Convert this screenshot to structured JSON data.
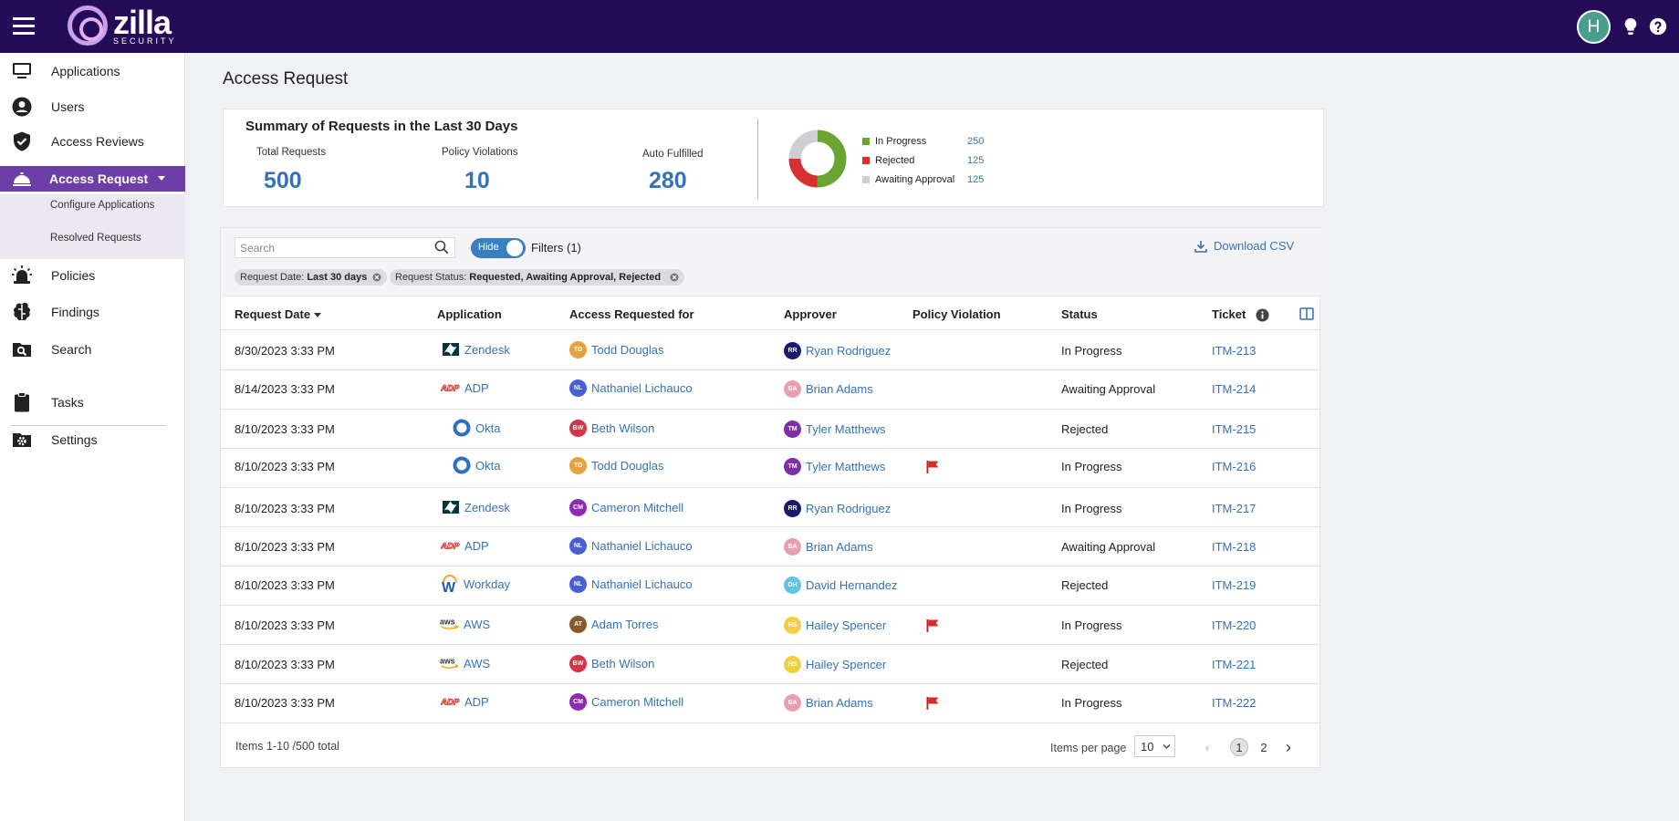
{
  "brand": {
    "word": "zilla",
    "sub": "SECURITY",
    "accent": "#6d3fa6",
    "topbar": "#250c59"
  },
  "user": {
    "initial": "H"
  },
  "sidebar": {
    "items": [
      {
        "label": "Applications"
      },
      {
        "label": "Users"
      },
      {
        "label": "Access Reviews"
      },
      {
        "label": "Access Request"
      },
      {
        "label": "Policies"
      },
      {
        "label": "Findings"
      },
      {
        "label": "Search"
      },
      {
        "label": "Tasks"
      },
      {
        "label": "Settings"
      }
    ],
    "subitems": [
      {
        "label": "Configure Applications"
      },
      {
        "label": "Resolved Requests"
      }
    ]
  },
  "page": {
    "title": "Access Request"
  },
  "summary": {
    "title": "Summary of Requests in the Last 30 Days",
    "stats": [
      {
        "label": "Total Requests",
        "value": "500"
      },
      {
        "label": "Policy Violations",
        "value": "10"
      },
      {
        "label": "Auto Fulfilled",
        "value": "280"
      }
    ],
    "legend": [
      {
        "label": "In Progress",
        "value": "250",
        "color": "#6aa534"
      },
      {
        "label": "Rejected",
        "value": "125",
        "color": "#d63031"
      },
      {
        "label": "Awaiting Approval",
        "value": "125",
        "color": "#cfcfd3"
      }
    ]
  },
  "toolbar": {
    "search_placeholder": "Search",
    "toggle_label": "Hide",
    "filters_label": "Filters (1)",
    "download_label": "Download CSV",
    "chips": [
      {
        "key": "Request Date:",
        "value": "Last 30 days"
      },
      {
        "key": "Request Status:",
        "value": "Requested, Awaiting Approval, Rejected"
      }
    ]
  },
  "table": {
    "columns": [
      "Request Date",
      "Application",
      "Access Requested for",
      "Approver",
      "Policy Violation",
      "Status",
      "Ticket"
    ],
    "rows": [
      {
        "date": "8/30/2023 3:33 PM",
        "app": "Zendesk",
        "req": "Todd Douglas",
        "req_initials": "TD",
        "req_color": "#e6a23c",
        "appr": "Ryan Rodriguez",
        "appr_initials": "RR",
        "appr_color": "#1a1a6e",
        "violation": false,
        "status": "In Progress",
        "ticket": "ITM-213"
      },
      {
        "date": "8/14/2023 3:33 PM",
        "app": "ADP",
        "req": "Nathaniel Lichauco",
        "req_initials": "NL",
        "req_color": "#4a5fd6",
        "appr": "Brian Adams",
        "appr_initials": "BA",
        "appr_color": "#e8a0b0",
        "violation": false,
        "status": "Awaiting Approval",
        "ticket": "ITM-214"
      },
      {
        "date": "8/10/2023 3:33 PM",
        "app": "Okta",
        "req": "Beth Wilson",
        "req_initials": "BW",
        "req_color": "#d63349",
        "appr": "Tyler Matthews",
        "appr_initials": "TM",
        "appr_color": "#7d2ea8",
        "violation": false,
        "status": "Rejected",
        "ticket": "ITM-215"
      },
      {
        "date": "8/10/2023 3:33 PM",
        "app": "Okta",
        "req": "Todd Douglas",
        "req_initials": "TD",
        "req_color": "#e6a23c",
        "appr": "Tyler Matthews",
        "appr_initials": "TM",
        "appr_color": "#7d2ea8",
        "violation": true,
        "status": "In Progress",
        "ticket": "ITM-216"
      },
      {
        "date": "8/10/2023 3:33 PM",
        "app": "Zendesk",
        "req": "Cameron Mitchell",
        "req_initials": "CM",
        "req_color": "#8e2bb3",
        "appr": "Ryan Rodriguez",
        "appr_initials": "RR",
        "appr_color": "#1a1a6e",
        "violation": false,
        "status": "In Progress",
        "ticket": "ITM-217"
      },
      {
        "date": "8/10/2023 3:33 PM",
        "app": "ADP",
        "req": "Nathaniel Lichauco",
        "req_initials": "NL",
        "req_color": "#4a5fd6",
        "appr": "Brian Adams",
        "appr_initials": "BA",
        "appr_color": "#e8a0b0",
        "violation": false,
        "status": "Awaiting Approval",
        "ticket": "ITM-218"
      },
      {
        "date": "8/10/2023 3:33 PM",
        "app": "Workday",
        "req": "Nathaniel Lichauco",
        "req_initials": "NL",
        "req_color": "#4a5fd6",
        "appr": "David Hernandez",
        "appr_initials": "DH",
        "appr_color": "#5ec4e8",
        "violation": false,
        "status": "Rejected",
        "ticket": "ITM-219"
      },
      {
        "date": "8/10/2023 3:33 PM",
        "app": "AWS",
        "req": "Adam Torres",
        "req_initials": "AT",
        "req_color": "#8a5a2b",
        "appr": "Hailey Spencer",
        "appr_initials": "HS",
        "appr_color": "#f0d040",
        "violation": true,
        "status": "In Progress",
        "ticket": "ITM-220"
      },
      {
        "date": "8/10/2023 3:33 PM",
        "app": "AWS",
        "req": "Beth Wilson",
        "req_initials": "BW",
        "req_color": "#d63349",
        "appr": "Hailey Spencer",
        "appr_initials": "HS",
        "appr_color": "#f0d040",
        "violation": false,
        "status": "Rejected",
        "ticket": "ITM-221"
      },
      {
        "date": "8/10/2023 3:33 PM",
        "app": "ADP",
        "req": "Cameron Mitchell",
        "req_initials": "CM",
        "req_color": "#8e2bb3",
        "appr": "Brian Adams",
        "appr_initials": "BA",
        "appr_color": "#e8a0b0",
        "violation": true,
        "status": "In Progress",
        "ticket": "ITM-222"
      }
    ]
  },
  "footer": {
    "items_total": "Items  1-10 /500 total",
    "ipp_label": "Items per page",
    "ipp_value": "10",
    "pages": [
      "1",
      "2"
    ]
  }
}
